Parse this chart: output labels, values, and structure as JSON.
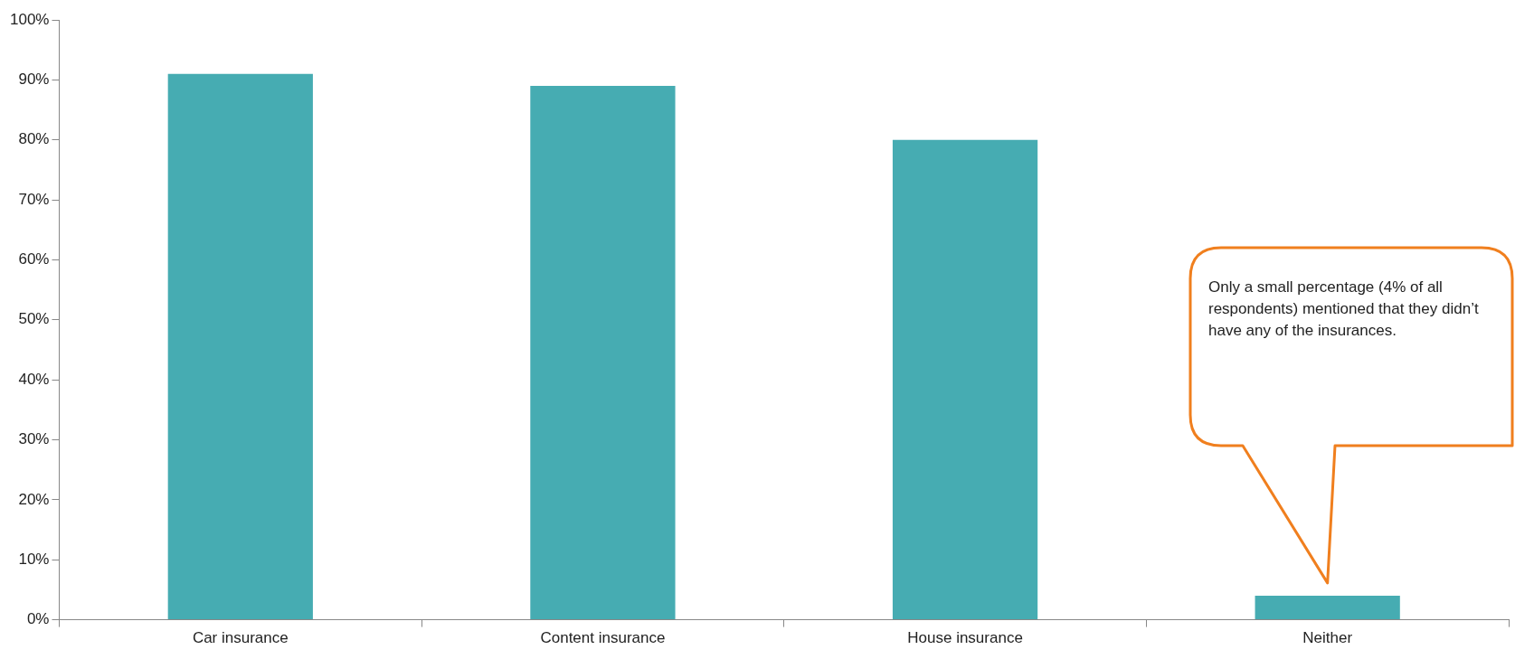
{
  "chart_data": {
    "type": "bar",
    "categories": [
      "Car insurance",
      "Content insurance",
      "House insurance",
      "Neither"
    ],
    "values": [
      91,
      89,
      80,
      4
    ],
    "color": "#46acb2",
    "ylim": [
      0,
      100
    ],
    "yticks": [
      {
        "value": 0,
        "label": "0%"
      },
      {
        "value": 10,
        "label": "10%"
      },
      {
        "value": 20,
        "label": "20%"
      },
      {
        "value": 30,
        "label": "30%"
      },
      {
        "value": 40,
        "label": "40%"
      },
      {
        "value": 50,
        "label": "50%"
      },
      {
        "value": 60,
        "label": "60%"
      },
      {
        "value": 70,
        "label": "70%"
      },
      {
        "value": 80,
        "label": "80%"
      },
      {
        "value": 90,
        "label": "90%"
      },
      {
        "value": 100,
        "label": "100%"
      }
    ],
    "grid": false,
    "legend": false,
    "annotations": [
      "Only a small percentage (4% of all respondents) mentioned that they didn’t  have any of the insurances."
    ]
  }
}
